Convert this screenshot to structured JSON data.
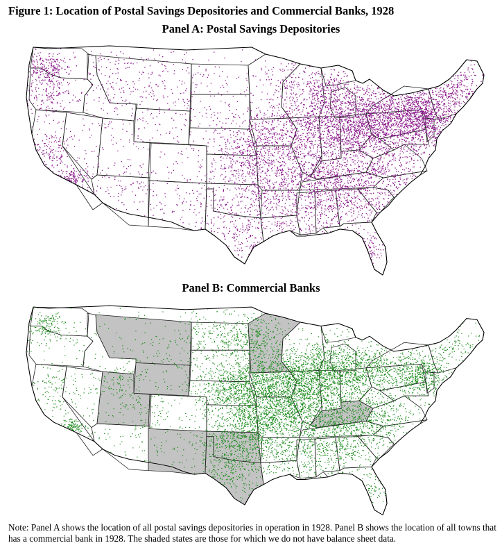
{
  "figure": {
    "title": "Figure 1: Location of Postal Savings Depositories and Commercial Banks, 1928"
  },
  "panels": [
    {
      "id": "A",
      "title": "Panel A: Postal Savings Depositories",
      "point_color": "#8b1a8b",
      "shaded_states": []
    },
    {
      "id": "B",
      "title": "Panel B: Commercial Banks",
      "point_color": "#1e8c1e",
      "shade_color": "#c3c3c3",
      "shaded_states": [
        "Montana",
        "Minnesota",
        "Utah",
        "New Mexico",
        "Texas",
        "Oklahoma",
        "Kentucky",
        "Wyoming"
      ]
    }
  ],
  "note": {
    "text": "Note: Panel A shows the location of all postal savings depositories in operation in 1928. Panel B shows the location of all towns that has a commercial bank in 1928. The shaded states are those for which we do not have balance sheet data."
  }
}
